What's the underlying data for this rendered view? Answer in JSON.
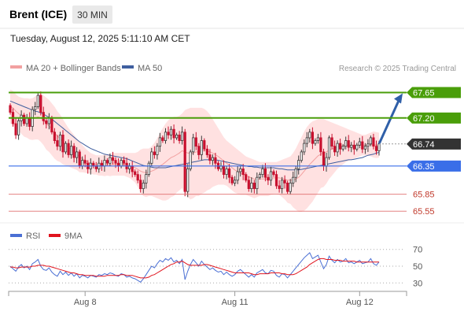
{
  "header": {
    "title": "Brent (ICE)",
    "timeframe": "30 MIN"
  },
  "timestamp": "Tuesday, August 12, 2025 5:11:10 AM CET",
  "legend": {
    "ma20": "MA 20 + Bollinger Bands",
    "ma50": "MA 50"
  },
  "credit": "Research © 2025 Trading Central",
  "rsi_legend": {
    "rsi": "RSI",
    "ma": "9MA"
  },
  "colors": {
    "up": "#3a3a3a",
    "down": "#c8102e",
    "bollinger": "#ffd9d9",
    "ma20": "#f2a0a0",
    "ma50": "#3f5f9f",
    "resistance": "#4a9e0a",
    "pivot": "#3a6ee8",
    "support": "#e07070",
    "current": "#333333",
    "arrow": "#2f5fa8",
    "rsi": "#4a6fd4",
    "rsi_ma": "#e0141e"
  },
  "chart_data": [
    {
      "type": "candlestick",
      "title": "Brent (ICE)",
      "timeframe": "30 MIN",
      "x_ticks": [
        "Aug 8",
        "Aug 11",
        "Aug 12"
      ],
      "y_range": [
        65.4,
        67.95
      ],
      "levels": [
        {
          "label": "67.65",
          "value": 67.65,
          "kind": "resistance"
        },
        {
          "label": "67.20",
          "value": 67.2,
          "kind": "resistance"
        },
        {
          "label": "66.74",
          "value": 66.74,
          "kind": "current"
        },
        {
          "label": "66.35",
          "value": 66.35,
          "kind": "pivot"
        },
        {
          "label": "65.85",
          "value": 65.85,
          "kind": "support"
        },
        {
          "label": "65.55",
          "value": 65.55,
          "kind": "support"
        }
      ],
      "closes": [
        67.3,
        67.1,
        66.9,
        67.15,
        67.25,
        67.1,
        67.2,
        67.05,
        67.35,
        67.4,
        67.6,
        67.3,
        67.15,
        67.1,
        67.2,
        66.95,
        66.8,
        66.7,
        66.9,
        66.6,
        66.75,
        66.55,
        66.7,
        66.5,
        66.6,
        66.35,
        66.45,
        66.4,
        66.3,
        66.4,
        66.35,
        66.3,
        66.4,
        66.35,
        66.45,
        66.4,
        66.5,
        66.45,
        66.4,
        66.35,
        66.45,
        66.4,
        66.3,
        66.35,
        66.25,
        66.2,
        66.1,
        65.95,
        66.05,
        66.2,
        66.4,
        66.6,
        66.55,
        66.7,
        66.85,
        66.8,
        66.95,
        66.9,
        67.0,
        66.85,
        66.9,
        66.8,
        66.95,
        65.9,
        66.3,
        66.6,
        66.85,
        66.7,
        66.55,
        66.8,
        66.65,
        66.55,
        66.45,
        66.5,
        66.4,
        66.3,
        66.35,
        66.2,
        66.3,
        66.15,
        66.05,
        66.1,
        66.25,
        66.3,
        66.2,
        66.1,
        65.95,
        66.05,
        65.95,
        66.15,
        66.2,
        66.3,
        66.15,
        66.1,
        66.25,
        66.2,
        66.0,
        65.95,
        66.1,
        66.05,
        65.9,
        66.05,
        66.15,
        66.3,
        66.45,
        66.6,
        66.75,
        66.85,
        66.95,
        66.75,
        66.8,
        66.85,
        66.6,
        66.35,
        66.5,
        66.85,
        66.7,
        66.6,
        66.75,
        66.65,
        66.7,
        66.8,
        66.68,
        66.72,
        66.65,
        66.72,
        66.78,
        66.65,
        66.7,
        66.74,
        66.85,
        66.7,
        66.62,
        66.74
      ],
      "ma20": [
        67.4,
        67.38,
        67.32,
        67.28,
        67.24,
        67.21,
        67.2,
        67.18,
        67.18,
        67.2,
        67.22,
        67.2,
        67.16,
        67.1,
        67.06,
        67.0,
        66.94,
        66.88,
        66.84,
        66.78,
        66.73,
        66.68,
        66.64,
        66.6,
        66.56,
        66.51,
        66.48,
        66.45,
        66.42,
        66.4,
        66.38,
        66.37,
        66.36,
        66.36,
        66.36,
        66.37,
        66.37,
        66.38,
        66.38,
        66.38,
        66.38,
        66.38,
        66.37,
        66.36,
        66.34,
        66.32,
        66.29,
        66.26,
        66.24,
        66.23,
        66.24,
        66.26,
        66.28,
        66.31,
        66.35,
        66.38,
        66.42,
        66.46,
        66.5,
        66.52,
        66.55,
        66.58,
        66.62,
        66.6,
        66.58,
        66.57,
        66.58,
        66.6,
        66.6,
        66.62,
        66.62,
        66.62,
        66.6,
        66.58,
        66.55,
        66.52,
        66.48,
        66.44,
        66.4,
        66.36,
        66.32,
        66.28,
        66.25,
        66.22,
        66.2,
        66.18,
        66.16,
        66.14,
        66.12,
        66.12,
        66.12,
        66.12,
        66.12,
        66.12,
        66.13,
        66.14,
        66.14,
        66.14,
        66.13,
        66.12,
        66.1,
        66.1,
        66.1,
        66.12,
        66.15,
        66.2,
        66.26,
        66.32,
        66.38,
        66.43,
        66.48,
        66.53,
        66.56,
        66.58,
        66.6,
        66.63,
        66.65,
        66.67,
        66.69,
        66.7,
        66.71,
        66.72,
        66.72,
        66.72,
        66.72,
        66.72,
        66.72,
        66.72,
        66.72,
        66.72,
        66.73,
        66.73,
        66.72,
        66.72
      ],
      "bb_upper": [
        67.7,
        67.68,
        67.62,
        67.58,
        67.56,
        67.55,
        67.55,
        67.54,
        67.55,
        67.58,
        67.62,
        67.62,
        67.6,
        67.56,
        67.52,
        67.46,
        67.4,
        67.32,
        67.26,
        67.18,
        67.1,
        67.02,
        66.96,
        66.9,
        66.84,
        66.78,
        66.72,
        66.67,
        66.62,
        66.58,
        66.56,
        66.54,
        66.54,
        66.54,
        66.55,
        66.56,
        66.57,
        66.58,
        66.58,
        66.58,
        66.58,
        66.58,
        66.58,
        66.58,
        66.58,
        66.58,
        66.6,
        66.64,
        66.66,
        66.66,
        66.66,
        66.7,
        66.76,
        66.84,
        66.94,
        67.02,
        67.1,
        67.16,
        67.2,
        67.22,
        67.22,
        67.24,
        67.28,
        67.34,
        67.36,
        67.38,
        67.38,
        67.38,
        67.38,
        67.38,
        67.36,
        67.32,
        67.26,
        67.18,
        67.1,
        67.02,
        66.94,
        66.86,
        66.8,
        66.76,
        66.72,
        66.68,
        66.64,
        66.6,
        66.56,
        66.52,
        66.5,
        66.48,
        66.46,
        66.44,
        66.42,
        66.42,
        66.42,
        66.42,
        66.42,
        66.42,
        66.42,
        66.44,
        66.46,
        66.48,
        66.5,
        66.52,
        66.58,
        66.66,
        66.76,
        66.86,
        66.96,
        67.04,
        67.1,
        67.14,
        67.16,
        67.18,
        67.18,
        67.18,
        67.16,
        67.14,
        67.12,
        67.1,
        67.08,
        67.06,
        67.04,
        67.02,
        67.0,
        66.98,
        66.96,
        66.94,
        66.92,
        66.9,
        66.9,
        66.92,
        66.94,
        66.96,
        66.95,
        66.94
      ],
      "bb_lower": [
        67.1,
        67.08,
        67.02,
        66.98,
        66.92,
        66.87,
        66.85,
        66.82,
        66.81,
        66.82,
        66.82,
        66.78,
        66.72,
        66.64,
        66.6,
        66.54,
        66.48,
        66.44,
        66.42,
        66.38,
        66.36,
        66.34,
        66.32,
        66.3,
        66.28,
        66.24,
        66.24,
        66.23,
        66.22,
        66.22,
        66.2,
        66.2,
        66.18,
        66.18,
        66.17,
        66.18,
        66.17,
        66.18,
        66.18,
        66.18,
        66.18,
        66.18,
        66.16,
        66.14,
        66.1,
        66.06,
        65.98,
        65.88,
        65.82,
        65.8,
        65.82,
        65.82,
        65.8,
        65.78,
        65.76,
        65.74,
        65.74,
        65.76,
        65.8,
        65.82,
        65.88,
        65.92,
        65.96,
        65.86,
        65.8,
        65.76,
        65.78,
        65.82,
        65.82,
        65.86,
        65.88,
        65.92,
        65.94,
        65.98,
        66.0,
        66.02,
        66.02,
        66.02,
        66.0,
        65.96,
        65.92,
        65.88,
        65.86,
        65.84,
        65.84,
        65.84,
        65.82,
        65.8,
        65.78,
        65.8,
        65.82,
        65.82,
        65.82,
        65.82,
        65.84,
        65.86,
        65.86,
        65.84,
        65.8,
        65.76,
        65.7,
        65.68,
        65.62,
        65.58,
        65.54,
        65.54,
        65.56,
        65.6,
        65.66,
        65.72,
        65.8,
        65.88,
        65.96,
        65.98,
        66.04,
        66.12,
        66.18,
        66.24,
        66.3,
        66.34,
        66.38,
        66.42,
        66.44,
        66.46,
        66.48,
        66.5,
        66.52,
        66.54,
        66.54,
        66.54,
        66.52,
        66.5,
        66.49,
        66.5
      ],
      "ma50": [
        67.5,
        67.48,
        67.46,
        67.44,
        67.42,
        67.4,
        67.38,
        67.36,
        67.34,
        67.32,
        67.31,
        67.29,
        67.27,
        67.24,
        67.21,
        67.18,
        67.14,
        67.1,
        67.06,
        67.02,
        66.98,
        66.94,
        66.9,
        66.86,
        66.82,
        66.78,
        66.75,
        66.72,
        66.69,
        66.66,
        66.64,
        66.62,
        66.6,
        66.58,
        66.56,
        66.55,
        66.54,
        66.53,
        66.52,
        66.51,
        66.5,
        66.49,
        66.48,
        66.46,
        66.44,
        66.42,
        66.4,
        66.38,
        66.36,
        66.35,
        66.34,
        66.33,
        66.32,
        66.32,
        66.32,
        66.32,
        66.32,
        66.33,
        66.34,
        66.35,
        66.36,
        66.37,
        66.38,
        66.39,
        66.4,
        66.41,
        66.42,
        66.43,
        66.44,
        66.45,
        66.46,
        66.46,
        66.46,
        66.46,
        66.46,
        66.45,
        66.44,
        66.43,
        66.42,
        66.41,
        66.4,
        66.39,
        66.38,
        66.37,
        66.36,
        66.35,
        66.34,
        66.34,
        66.33,
        66.33,
        66.32,
        66.32,
        66.32,
        66.32,
        66.32,
        66.32,
        66.31,
        66.3,
        66.3,
        66.29,
        66.28,
        66.28,
        66.28,
        66.28,
        66.28,
        66.29,
        66.3,
        66.31,
        66.32,
        66.33,
        66.34,
        66.35,
        66.36,
        66.37,
        66.38,
        66.39,
        66.4,
        66.41,
        66.42,
        66.43,
        66.44,
        66.45,
        66.46,
        66.46,
        66.47,
        66.48,
        66.49,
        66.5,
        66.52,
        66.54,
        66.55,
        66.56,
        66.58,
        66.59
      ]
    },
    {
      "type": "line",
      "title": "RSI",
      "y_ticks": [
        70,
        50,
        30
      ],
      "y_range": [
        20,
        80
      ],
      "dotted_levels": [
        70,
        50,
        30
      ],
      "series": [
        {
          "name": "RSI",
          "values": [
            50,
            47,
            44,
            49,
            52,
            48,
            50,
            46,
            53,
            55,
            58,
            50,
            46,
            45,
            48,
            43,
            40,
            38,
            44,
            40,
            43,
            39,
            42,
            38,
            41,
            36,
            39,
            38,
            36,
            39,
            38,
            37,
            40,
            39,
            41,
            40,
            42,
            41,
            39,
            38,
            41,
            40,
            37,
            38,
            36,
            35,
            33,
            31,
            35,
            40,
            45,
            50,
            48,
            53,
            57,
            55,
            59,
            57,
            60,
            55,
            57,
            53,
            58,
            34,
            44,
            52,
            58,
            54,
            50,
            56,
            52,
            49,
            46,
            48,
            45,
            43,
            44,
            40,
            43,
            40,
            38,
            40,
            44,
            46,
            43,
            40,
            37,
            40,
            37,
            42,
            44,
            46,
            42,
            41,
            45,
            44,
            39,
            37,
            41,
            40,
            36,
            40,
            44,
            48,
            52,
            56,
            60,
            63,
            66,
            59,
            61,
            63,
            55,
            47,
            52,
            62,
            57,
            54,
            58,
            55,
            56,
            59,
            54,
            55,
            53,
            55,
            57,
            53,
            54,
            55,
            59,
            53,
            51,
            55
          ]
        },
        {
          "name": "9MA",
          "values": [
            49,
            49,
            48,
            48,
            49,
            49,
            49,
            49,
            50,
            50,
            51,
            51,
            51,
            50,
            50,
            49,
            48,
            47,
            46,
            45,
            44,
            43,
            42,
            42,
            41,
            40,
            40,
            39,
            39,
            39,
            39,
            38,
            38,
            38,
            38,
            39,
            39,
            39,
            39,
            39,
            40,
            40,
            39,
            39,
            39,
            38,
            37,
            36,
            36,
            36,
            37,
            39,
            40,
            42,
            44,
            46,
            48,
            50,
            52,
            53,
            55,
            55,
            56,
            54,
            52,
            51,
            51,
            51,
            51,
            51,
            52,
            52,
            51,
            50,
            49,
            48,
            47,
            46,
            45,
            44,
            43,
            42,
            42,
            42,
            42,
            42,
            42,
            41,
            40,
            40,
            41,
            41,
            41,
            41,
            42,
            42,
            42,
            42,
            41,
            41,
            40,
            40,
            40,
            41,
            43,
            45,
            47,
            49,
            52,
            54,
            56,
            58,
            59,
            59,
            58,
            58,
            58,
            57,
            57,
            57,
            56,
            56,
            56,
            56,
            56,
            55,
            55,
            55,
            55,
            55,
            55,
            55,
            55,
            55
          ]
        }
      ]
    }
  ]
}
